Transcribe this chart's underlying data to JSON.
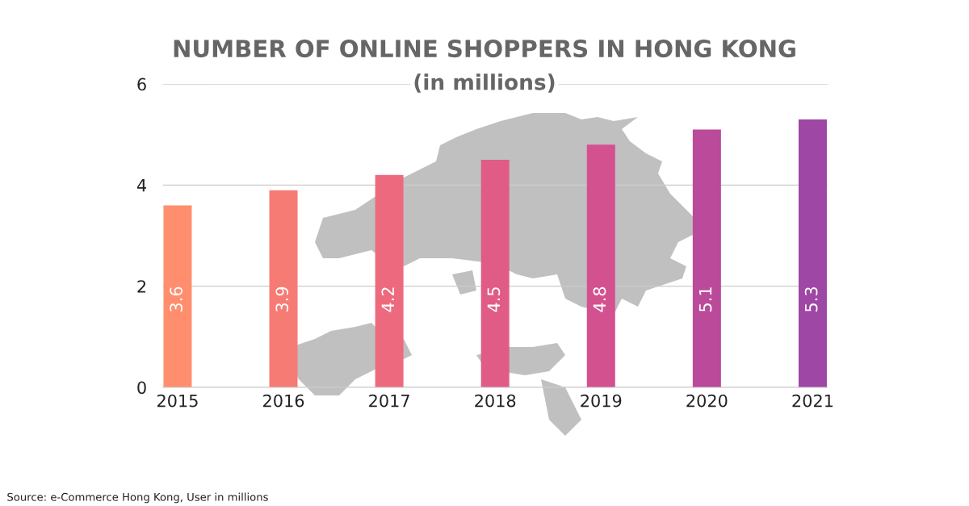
{
  "chart_data": {
    "type": "bar",
    "title": "NUMBER OF ONLINE SHOPPERS IN HONG KONG",
    "subtitle": "(in millions)",
    "categories": [
      "2015",
      "2016",
      "2017",
      "2018",
      "2019",
      "2020",
      "2021"
    ],
    "values": [
      3.6,
      3.9,
      4.2,
      4.5,
      4.8,
      5.1,
      5.3
    ],
    "colors": [
      "#fe8e6e",
      "#f77b75",
      "#ed6a7e",
      "#e05c86",
      "#d3518f",
      "#bb4a9b",
      "#9e47a4"
    ],
    "ylim": [
      0,
      6
    ],
    "yticks": [
      0,
      2,
      4,
      6
    ],
    "grid": "y",
    "data_labels": true,
    "annotations": [
      "Source: e-Commerce Hong Kong, User in millions"
    ]
  }
}
